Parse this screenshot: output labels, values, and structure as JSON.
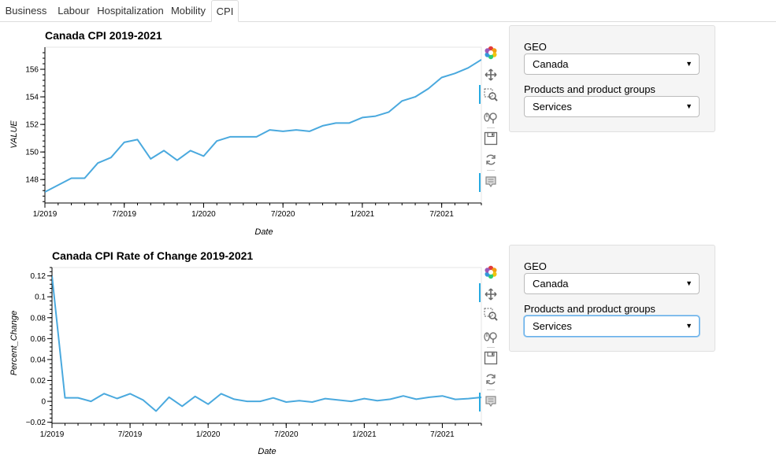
{
  "tabs": [
    "Business",
    "Labour",
    "Hospitalization",
    "Mobility",
    "CPI"
  ],
  "active_tab": 4,
  "line_color": "#4aa9de",
  "charts": [
    {
      "title": "Canada CPI 2019-2021",
      "xlabel": "Date",
      "ylabel": "VALUE",
      "x_ticks": [
        "1/2019",
        "7/2019",
        "1/2020",
        "7/2020",
        "1/2021",
        "7/2021"
      ],
      "y_ticks": [
        "148",
        "150",
        "152",
        "154",
        "156"
      ],
      "y_tick_values": [
        148,
        150,
        152,
        154,
        156
      ]
    },
    {
      "title": "Canada CPI Rate of Change 2019-2021",
      "xlabel": "Date",
      "ylabel": "Percent_Change",
      "x_ticks": [
        "1/2019",
        "7/2019",
        "1/2020",
        "7/2020",
        "1/2021",
        "7/2021"
      ],
      "y_ticks": [
        "0.12",
        "0.1",
        "0.08",
        "0.06",
        "0.04",
        "0.02",
        "0",
        "−0.02"
      ],
      "y_tick_values": [
        0.12,
        0.1,
        0.08,
        0.06,
        0.04,
        0.02,
        0,
        -0.02
      ]
    }
  ],
  "chart_data": [
    {
      "type": "line",
      "title": "Canada CPI 2019-2021",
      "xlabel": "Date",
      "ylabel": "VALUE",
      "x": [
        "2019-01",
        "2019-02",
        "2019-03",
        "2019-04",
        "2019-05",
        "2019-06",
        "2019-07",
        "2019-08",
        "2019-09",
        "2019-10",
        "2019-11",
        "2019-12",
        "2020-01",
        "2020-02",
        "2020-03",
        "2020-04",
        "2020-05",
        "2020-06",
        "2020-07",
        "2020-08",
        "2020-09",
        "2020-10",
        "2020-11",
        "2020-12",
        "2021-01",
        "2021-02",
        "2021-03",
        "2021-04",
        "2021-05",
        "2021-06",
        "2021-07",
        "2021-08",
        "2021-09",
        "2021-10"
      ],
      "values": [
        147.1,
        147.6,
        148.1,
        148.1,
        149.2,
        149.6,
        150.7,
        150.9,
        149.5,
        150.1,
        149.4,
        150.1,
        149.7,
        150.8,
        151.1,
        151.1,
        151.1,
        151.6,
        151.5,
        151.6,
        151.5,
        151.9,
        152.1,
        152.1,
        152.5,
        152.6,
        152.9,
        153.7,
        154.0,
        154.6,
        155.4,
        155.7,
        156.1,
        156.7
      ],
      "xlim": [
        "2019-01",
        "2021-10"
      ],
      "ylim": [
        146.3,
        157.6
      ],
      "grid": false
    },
    {
      "type": "line",
      "title": "Canada CPI Rate of Change 2019-2021",
      "xlabel": "Date",
      "ylabel": "Percent_Change",
      "x": [
        "2019-01",
        "2019-02",
        "2019-03",
        "2019-04",
        "2019-05",
        "2019-06",
        "2019-07",
        "2019-08",
        "2019-09",
        "2019-10",
        "2019-11",
        "2019-12",
        "2020-01",
        "2020-02",
        "2020-03",
        "2020-04",
        "2020-05",
        "2020-06",
        "2020-07",
        "2020-08",
        "2020-09",
        "2020-10",
        "2020-11",
        "2020-12",
        "2021-01",
        "2021-02",
        "2021-03",
        "2021-04",
        "2021-05",
        "2021-06",
        "2021-07",
        "2021-08",
        "2021-09",
        "2021-10"
      ],
      "values": [
        0.12,
        0.0034,
        0.0034,
        0.0,
        0.0074,
        0.0027,
        0.0073,
        0.0013,
        -0.0093,
        0.004,
        -0.0047,
        0.0047,
        -0.0027,
        0.0073,
        0.002,
        0.0,
        0.0,
        0.0033,
        -0.0007,
        0.0007,
        -0.0007,
        0.0026,
        0.0013,
        0.0,
        0.0026,
        0.0007,
        0.002,
        0.0052,
        0.002,
        0.0039,
        0.0052,
        0.0019,
        0.0026,
        0.0038
      ],
      "xlim": [
        "2019-01",
        "2021-10"
      ],
      "ylim": [
        -0.021,
        0.128
      ],
      "grid": false
    }
  ],
  "widgets": [
    {
      "geo_label": "GEO",
      "geo_value": "Canada",
      "products_label": "Products and product groups",
      "products_value": "Services"
    },
    {
      "geo_label": "GEO",
      "geo_value": "Canada",
      "products_label": "Products and product groups",
      "products_value": "Services"
    }
  ]
}
